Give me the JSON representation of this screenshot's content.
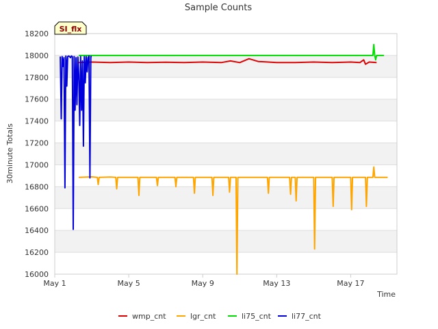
{
  "chart_data": {
    "type": "line",
    "title": "Sample Counts",
    "xlabel": "Time",
    "ylabel": "30minute Totals",
    "site_badge": "SI_flx",
    "ylim": [
      16000,
      18200
    ],
    "yticks": [
      16000,
      16200,
      16400,
      16600,
      16800,
      17000,
      17200,
      17400,
      17600,
      17800,
      18000,
      18200
    ],
    "xlim_days": [
      0,
      18.5
    ],
    "xticks": [
      {
        "day": 0,
        "label": "May 1"
      },
      {
        "day": 4,
        "label": "May 5"
      },
      {
        "day": 8,
        "label": "May 9"
      },
      {
        "day": 12,
        "label": "May 13"
      },
      {
        "day": 16,
        "label": "May 17"
      }
    ],
    "grid": true,
    "legend_position": "bottom",
    "series": [
      {
        "name": "wmp_cnt",
        "color": "#dd0000",
        "x": [
          1.3,
          2.0,
          3.0,
          4.0,
          5.0,
          6.0,
          7.0,
          8.0,
          9.0,
          9.5,
          10.0,
          10.5,
          11.0,
          12.0,
          13.0,
          14.0,
          15.0,
          16.0,
          16.5,
          16.7,
          16.8,
          17.0,
          17.4
        ],
        "y": [
          17935,
          17940,
          17935,
          17940,
          17935,
          17938,
          17935,
          17940,
          17935,
          17950,
          17935,
          17970,
          17945,
          17935,
          17935,
          17940,
          17935,
          17940,
          17935,
          17960,
          17920,
          17940,
          17935
        ]
      },
      {
        "name": "lgr_cnt",
        "color": "#ffa500",
        "x": [
          1.3,
          2.0,
          2.3,
          2.35,
          2.4,
          3.0,
          3.3,
          3.35,
          3.4,
          4.0,
          4.5,
          4.55,
          4.6,
          5.5,
          5.55,
          5.6,
          6.5,
          6.55,
          6.6,
          7.5,
          7.55,
          7.6,
          8.5,
          8.55,
          8.6,
          9.4,
          9.45,
          9.5,
          9.8,
          9.85,
          9.9,
          11.5,
          11.55,
          11.6,
          12.7,
          12.75,
          12.8,
          13.0,
          13.05,
          13.1,
          14.0,
          14.05,
          14.1,
          15.0,
          15.05,
          15.1,
          16.0,
          16.05,
          16.1,
          16.8,
          16.85,
          16.9,
          17.2,
          17.25,
          17.3,
          17.5,
          17.55,
          17.6,
          18.0
        ],
        "y": [
          16885,
          16890,
          16885,
          16820,
          16885,
          16888,
          16885,
          16780,
          16885,
          16885,
          16885,
          16720,
          16885,
          16885,
          16810,
          16885,
          16885,
          16800,
          16885,
          16885,
          16740,
          16885,
          16885,
          16720,
          16885,
          16885,
          16750,
          16885,
          16885,
          16000,
          16885,
          16885,
          16740,
          16885,
          16885,
          16730,
          16885,
          16885,
          16670,
          16885,
          16885,
          16230,
          16885,
          16885,
          16620,
          16885,
          16885,
          16590,
          16885,
          16885,
          16620,
          16885,
          16885,
          16980,
          16885,
          16885,
          16885,
          16885,
          16885
        ]
      },
      {
        "name": "li75_cnt",
        "color": "#00dd00",
        "x": [
          1.3,
          5.0,
          10.0,
          15.0,
          17.2,
          17.25,
          17.3,
          17.35,
          17.4,
          17.5,
          17.8
        ],
        "y": [
          18000,
          18000,
          18000,
          18000,
          18000,
          18100,
          18000,
          17960,
          18000,
          18000,
          18000
        ]
      },
      {
        "name": "li77_cnt",
        "color": "#0000dd",
        "x": [
          0.3,
          0.35,
          0.4,
          0.45,
          0.5,
          0.55,
          0.6,
          0.62,
          0.65,
          0.7,
          0.75,
          0.8,
          0.85,
          0.9,
          0.95,
          0.97,
          1.0,
          1.05,
          1.1,
          1.15,
          1.2,
          1.25,
          1.3,
          1.35,
          1.4,
          1.45,
          1.5,
          1.55,
          1.6,
          1.65,
          1.7,
          1.75,
          1.8,
          1.85,
          1.9,
          1.95,
          2.0
        ],
        "y": [
          17990,
          17420,
          17990,
          17900,
          17980,
          16790,
          17995,
          17950,
          17720,
          17990,
          17995,
          17990,
          17980,
          17995,
          17990,
          17400,
          16410,
          17990,
          17500,
          17980,
          17550,
          17985,
          17820,
          17360,
          17990,
          17500,
          17950,
          17170,
          17990,
          17750,
          17990,
          17850,
          17980,
          17995,
          16880,
          17990,
          17990
        ]
      }
    ]
  }
}
